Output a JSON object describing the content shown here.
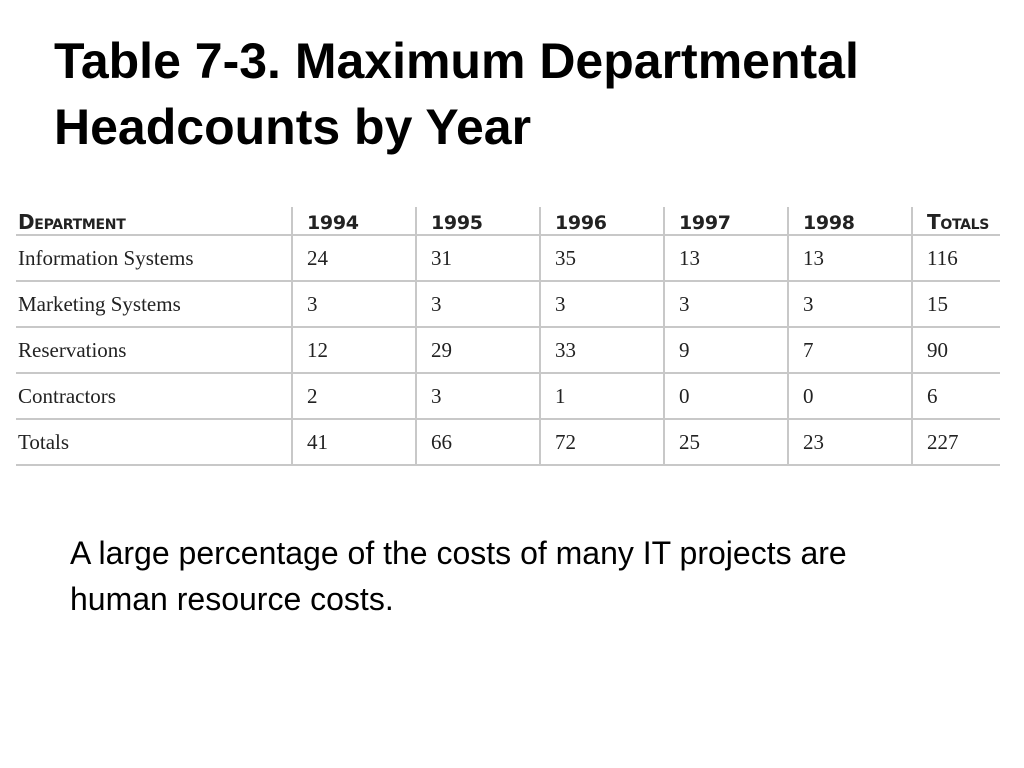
{
  "title": {
    "line1": "Table 7-3. Maximum Departmental",
    "line2": "Headcounts by Year"
  },
  "table": {
    "headers": [
      "Department",
      "1994",
      "1995",
      "1996",
      "1997",
      "1998",
      "Totals"
    ],
    "rows": [
      [
        "Information Systems",
        "24",
        "31",
        "35",
        "13",
        "13",
        "116"
      ],
      [
        "Marketing Systems",
        "3",
        "3",
        "3",
        "3",
        "3",
        "15"
      ],
      [
        "Reservations",
        "12",
        "29",
        "33",
        "9",
        "7",
        "90"
      ],
      [
        "Contractors",
        "2",
        "3",
        "1",
        "0",
        "0",
        "6"
      ],
      [
        "Totals",
        "41",
        "66",
        "72",
        "25",
        "23",
        "227"
      ]
    ]
  },
  "body": {
    "line1": "A large percentage of the costs of many IT projects are",
    "line2": "human resource costs."
  }
}
